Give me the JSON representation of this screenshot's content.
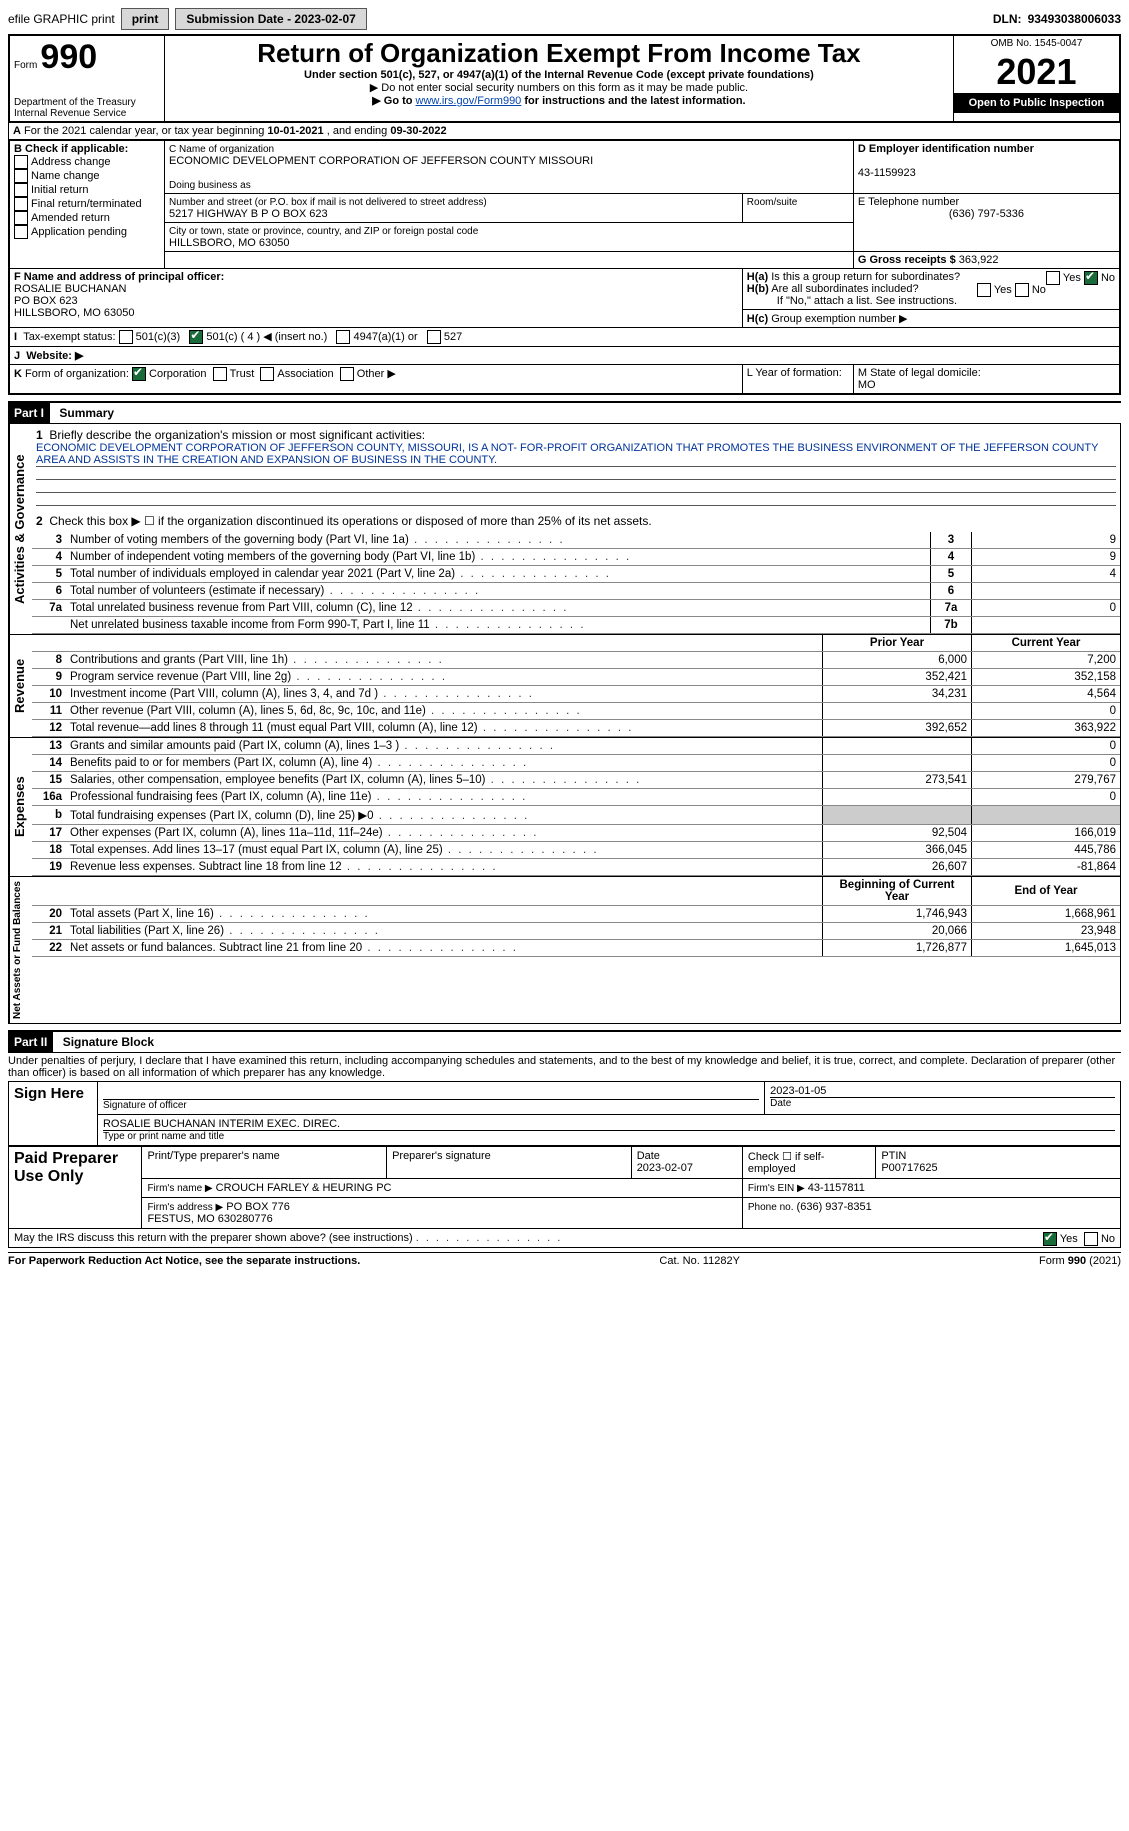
{
  "topbar": {
    "efile": "efile GRAPHIC print",
    "subdate_label": "Submission Date - ",
    "subdate": "2023-02-07",
    "dln_label": "DLN: ",
    "dln": "93493038006033"
  },
  "header": {
    "form_label": "Form",
    "form_no": "990",
    "title": "Return of Organization Exempt From Income Tax",
    "sub1": "Under section 501(c), 527, or 4947(a)(1) of the Internal Revenue Code (except private foundations)",
    "sub2": "▶ Do not enter social security numbers on this form as it may be made public.",
    "sub3_prefix": "▶ Go to ",
    "sub3_link": "www.irs.gov/Form990",
    "sub3_suffix": " for instructions and the latest information.",
    "dept": "Department of the Treasury\nInternal Revenue Service",
    "omb": "OMB No. 1545-0047",
    "year": "2021",
    "open": "Open to Public Inspection"
  },
  "A": {
    "text": "For the 2021 calendar year, or tax year beginning ",
    "begin": "10-01-2021",
    "mid": " , and ending ",
    "end": "09-30-2022"
  },
  "B": {
    "label": "B Check if applicable:",
    "items": [
      "Address change",
      "Name change",
      "Initial return",
      "Final return/terminated",
      "Amended return",
      "Application pending"
    ]
  },
  "C": {
    "name_label": "C Name of organization",
    "name": "ECONOMIC DEVELOPMENT CORPORATION OF JEFFERSON COUNTY MISSOURI",
    "dba_label": "Doing business as",
    "addr_label": "Number and street (or P.O. box if mail is not delivered to street address)",
    "room_label": "Room/suite",
    "addr": "5217 HIGHWAY B P O BOX 623",
    "city_label": "City or town, state or province, country, and ZIP or foreign postal code",
    "city": "HILLSBORO, MO  63050"
  },
  "D": {
    "label": "D Employer identification number",
    "val": "43-1159923"
  },
  "E": {
    "label": "E Telephone number",
    "val": "(636) 797-5336"
  },
  "G": {
    "label": "G Gross receipts $ ",
    "val": "363,922"
  },
  "F": {
    "label": "F Name and address of principal officer:",
    "name": "ROSALIE BUCHANAN",
    "addr1": "PO BOX 623",
    "addr2": "HILLSBORO, MO  63050"
  },
  "H": {
    "a": "Is this a group return for subordinates?",
    "b": "Are all subordinates included?",
    "note": "If \"No,\" attach a list. See instructions.",
    "c": "Group exemption number ▶"
  },
  "I": {
    "label": "Tax-exempt status:",
    "opts": [
      "501(c)(3)",
      "501(c) ( 4 ) ◀ (insert no.)",
      "4947(a)(1) or",
      "527"
    ]
  },
  "J": {
    "label": "Website: ▶"
  },
  "K": {
    "label": "Form of organization:",
    "opts": [
      "Corporation",
      "Trust",
      "Association",
      "Other ▶"
    ]
  },
  "L": {
    "label": "L Year of formation:"
  },
  "M": {
    "label": "M State of legal domicile:",
    "val": "MO"
  },
  "part1": {
    "hdr": "Part I",
    "title": "Summary",
    "l1_label": "Briefly describe the organization's mission or most significant activities:",
    "l1_text": "ECONOMIC DEVELOPMENT CORPORATION OF JEFFERSON COUNTY, MISSOURI, IS A NOT- FOR-PROFIT ORGANIZATION THAT PROMOTES THE BUSINESS ENVIRONMENT OF THE JEFFERSON COUNTY AREA AND ASSISTS IN THE CREATION AND EXPANSION OF BUSINESS IN THE COUNTY.",
    "l2": "Check this box ▶ ☐ if the organization discontinued its operations or disposed of more than 25% of its net assets.",
    "side_ag": "Activities & Governance",
    "side_rev": "Revenue",
    "side_exp": "Expenses",
    "side_na": "Net Assets or Fund Balances",
    "prior_hdr": "Prior Year",
    "current_hdr": "Current Year",
    "begin_hdr": "Beginning of Current Year",
    "end_hdr": "End of Year",
    "rows_ag": [
      {
        "n": "3",
        "t": "Number of voting members of the governing body (Part VI, line 1a)",
        "box": "3",
        "v": "9"
      },
      {
        "n": "4",
        "t": "Number of independent voting members of the governing body (Part VI, line 1b)",
        "box": "4",
        "v": "9"
      },
      {
        "n": "5",
        "t": "Total number of individuals employed in calendar year 2021 (Part V, line 2a)",
        "box": "5",
        "v": "4"
      },
      {
        "n": "6",
        "t": "Total number of volunteers (estimate if necessary)",
        "box": "6",
        "v": ""
      },
      {
        "n": "7a",
        "t": "Total unrelated business revenue from Part VIII, column (C), line 12",
        "box": "7a",
        "v": "0"
      },
      {
        "n": "",
        "t": "Net unrelated business taxable income from Form 990-T, Part I, line 11",
        "box": "7b",
        "v": ""
      }
    ],
    "rows_rev": [
      {
        "n": "8",
        "t": "Contributions and grants (Part VIII, line 1h)",
        "p": "6,000",
        "c": "7,200"
      },
      {
        "n": "9",
        "t": "Program service revenue (Part VIII, line 2g)",
        "p": "352,421",
        "c": "352,158"
      },
      {
        "n": "10",
        "t": "Investment income (Part VIII, column (A), lines 3, 4, and 7d )",
        "p": "34,231",
        "c": "4,564"
      },
      {
        "n": "11",
        "t": "Other revenue (Part VIII, column (A), lines 5, 6d, 8c, 9c, 10c, and 11e)",
        "p": "",
        "c": "0"
      },
      {
        "n": "12",
        "t": "Total revenue—add lines 8 through 11 (must equal Part VIII, column (A), line 12)",
        "p": "392,652",
        "c": "363,922"
      }
    ],
    "rows_exp": [
      {
        "n": "13",
        "t": "Grants and similar amounts paid (Part IX, column (A), lines 1–3 )",
        "p": "",
        "c": "0"
      },
      {
        "n": "14",
        "t": "Benefits paid to or for members (Part IX, column (A), line 4)",
        "p": "",
        "c": "0"
      },
      {
        "n": "15",
        "t": "Salaries, other compensation, employee benefits (Part IX, column (A), lines 5–10)",
        "p": "273,541",
        "c": "279,767"
      },
      {
        "n": "16a",
        "t": "Professional fundraising fees (Part IX, column (A), line 11e)",
        "p": "",
        "c": "0"
      },
      {
        "n": "b",
        "t": "Total fundraising expenses (Part IX, column (D), line 25) ▶0",
        "p": "",
        "c": "",
        "shade": true
      },
      {
        "n": "17",
        "t": "Other expenses (Part IX, column (A), lines 11a–11d, 11f–24e)",
        "p": "92,504",
        "c": "166,019"
      },
      {
        "n": "18",
        "t": "Total expenses. Add lines 13–17 (must equal Part IX, column (A), line 25)",
        "p": "366,045",
        "c": "445,786"
      },
      {
        "n": "19",
        "t": "Revenue less expenses. Subtract line 18 from line 12",
        "p": "26,607",
        "c": "-81,864"
      }
    ],
    "rows_na": [
      {
        "n": "20",
        "t": "Total assets (Part X, line 16)",
        "p": "1,746,943",
        "c": "1,668,961"
      },
      {
        "n": "21",
        "t": "Total liabilities (Part X, line 26)",
        "p": "20,066",
        "c": "23,948"
      },
      {
        "n": "22",
        "t": "Net assets or fund balances. Subtract line 21 from line 20",
        "p": "1,726,877",
        "c": "1,645,013"
      }
    ]
  },
  "part2": {
    "hdr": "Part II",
    "title": "Signature Block",
    "decl": "Under penalties of perjury, I declare that I have examined this return, including accompanying schedules and statements, and to the best of my knowledge and belief, it is true, correct, and complete. Declaration of preparer (other than officer) is based on all information of which preparer has any knowledge.",
    "sign_here": "Sign Here",
    "sig_officer": "Signature of officer",
    "sig_date": "2023-01-05",
    "date_label": "Date",
    "officer_name": "ROSALIE BUCHANAN  INTERIM EXEC. DIREC.",
    "type_name": "Type or print name and title",
    "paid": "Paid Preparer Use Only",
    "prep_name_label": "Print/Type preparer's name",
    "prep_sig_label": "Preparer's signature",
    "prep_date_label": "Date",
    "prep_date": "2023-02-07",
    "self_emp": "Check ☐ if self-employed",
    "ptin_label": "PTIN",
    "ptin": "P00717625",
    "firm_name_label": "Firm's name    ▶",
    "firm_name": "CROUCH FARLEY & HEURING PC",
    "firm_ein_label": "Firm's EIN ▶",
    "firm_ein": "43-1157811",
    "firm_addr_label": "Firm's address ▶",
    "firm_addr": "PO BOX 776\nFESTUS, MO  630280776",
    "firm_phone_label": "Phone no.",
    "firm_phone": "(636) 937-8351",
    "discuss": "May the IRS discuss this return with the preparer shown above? (see instructions)",
    "yes": "Yes",
    "no": "No"
  },
  "footer": {
    "left": "For Paperwork Reduction Act Notice, see the separate instructions.",
    "mid": "Cat. No. 11282Y",
    "right": "Form 990 (2021)"
  }
}
